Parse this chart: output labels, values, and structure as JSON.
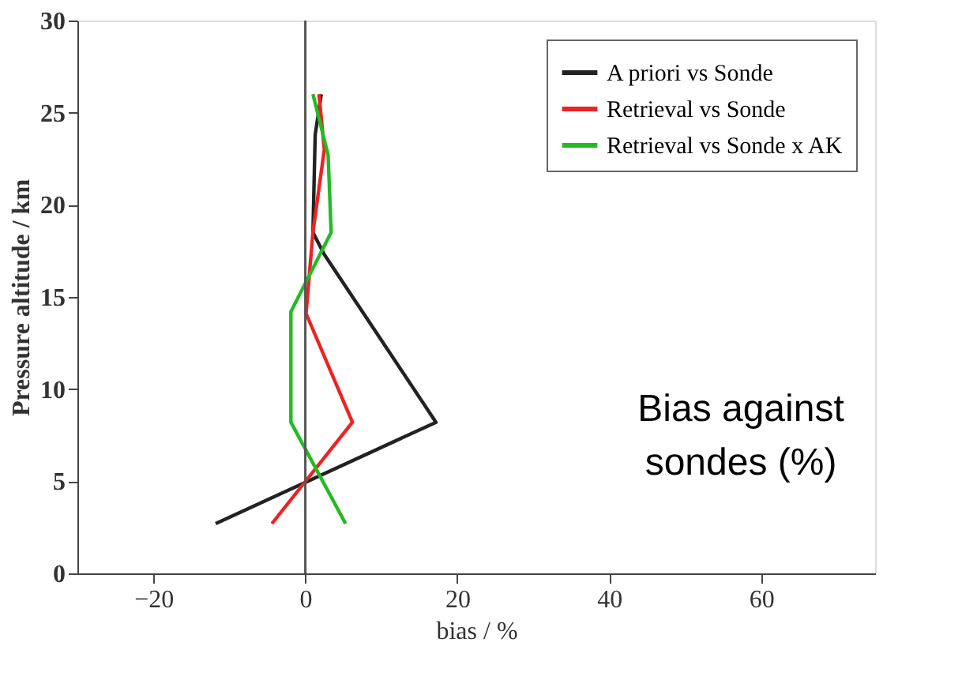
{
  "chart_data": {
    "type": "line",
    "xlabel": "bias / %",
    "ylabel": "Pressure altitude / km",
    "xlim": [
      -30,
      75
    ],
    "xticks": [
      -20,
      0,
      20,
      40,
      60
    ],
    "ylim": [
      0,
      30
    ],
    "yticks": [
      0,
      5,
      10,
      15,
      20,
      25,
      30
    ],
    "grid": false,
    "legend": "top right",
    "line_style": "solid",
    "marker": "none",
    "ref_lines": [
      {
        "axis": "x",
        "value": 0,
        "color": "#555555"
      }
    ],
    "annotations": [
      "Bias against sondes (%)"
    ],
    "series": [
      {
        "name": "A priori vs Sonde",
        "color": "#222222",
        "x": [
          -11.8,
          17.2,
          2.5,
          1.0,
          1.3,
          2.1
        ],
        "values": [
          2.7,
          8.2,
          17.3,
          18.5,
          23.8,
          26.0
        ]
      },
      {
        "name": "Retrieval vs Sonde",
        "color": "#ee2222",
        "x": [
          -4.4,
          6.2,
          0.1,
          1.0,
          2.5,
          1.8
        ],
        "values": [
          2.7,
          8.2,
          14.1,
          18.5,
          23.0,
          26.0
        ]
      },
      {
        "name": "Retrieval vs Sonde x AK",
        "color": "#22bb22",
        "x": [
          5.3,
          -1.9,
          -1.9,
          3.4,
          3.0,
          1.0
        ],
        "values": [
          2.7,
          8.2,
          14.2,
          18.5,
          22.7,
          26.0
        ]
      }
    ]
  }
}
